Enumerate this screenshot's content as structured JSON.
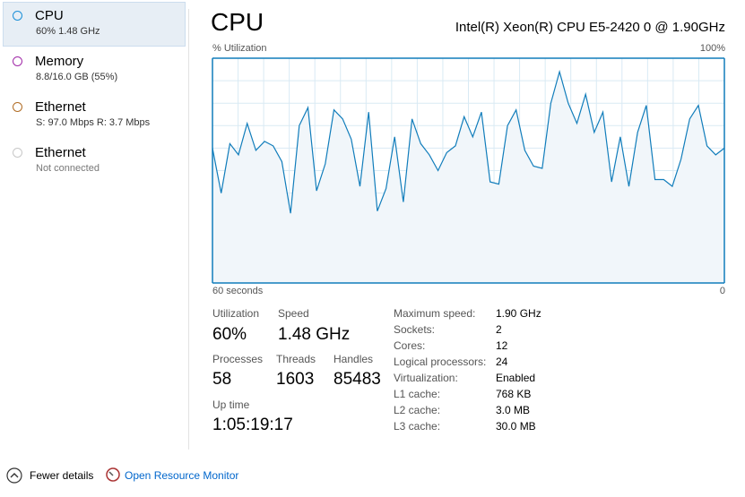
{
  "sidebar": [
    {
      "name": "CPU",
      "detail": "60% 1.48 GHz"
    },
    {
      "name": "Memory",
      "detail": "8.8/16.0 GB (55%)"
    },
    {
      "name": "Ethernet",
      "detail": "S: 97.0 Mbps R: 3.7 Mbps"
    },
    {
      "name": "Ethernet",
      "detail": "Not connected"
    }
  ],
  "header": {
    "title": "CPU",
    "processor": "Intel(R) Xeon(R) CPU E5-2420 0 @ 1.90GHz"
  },
  "graph": {
    "type": "line",
    "y_label": "% Utilization",
    "color": "#117dbb",
    "ylim": [
      0,
      100
    ],
    "yticks": [
      {
        "value": 100,
        "label": "100%"
      }
    ],
    "xlim": [
      60,
      0
    ],
    "xticks": [
      {
        "value": 60,
        "label": "60 seconds"
      },
      0
    ],
    "values": [
      60,
      40,
      62,
      57,
      71,
      59,
      63,
      61,
      54,
      31,
      70,
      78,
      41,
      53,
      77,
      73,
      64,
      43,
      76,
      32,
      42,
      65,
      36,
      73,
      62,
      57,
      50,
      58,
      61,
      74,
      65,
      76,
      45,
      44,
      70,
      77,
      59,
      52,
      51,
      80,
      94,
      80,
      71,
      84,
      67,
      76,
      45,
      65,
      43,
      67,
      79,
      46,
      46,
      43,
      55,
      73,
      79,
      61,
      57,
      60
    ]
  },
  "stats": [
    {
      "label": "Utilization",
      "value": "60%"
    },
    {
      "label": "Speed",
      "value": "1.48 GHz"
    },
    {
      "label": "Processes",
      "value": "58"
    },
    {
      "label": "Threads",
      "value": "1603"
    },
    {
      "label": "Handles",
      "value": "85483"
    },
    {
      "label": "Up time",
      "value": "1:05:19:17"
    }
  ],
  "specs": [
    {
      "label": "Maximum speed:",
      "value": "1.90 GHz"
    },
    {
      "label": "Sockets:",
      "value": "2"
    },
    {
      "label": "Cores:",
      "value": "12"
    },
    {
      "label": "Logical processors:",
      "value": "24"
    },
    {
      "label": "Virtualization:",
      "value": "Enabled"
    },
    {
      "label": "L1 cache:",
      "value": "768 KB"
    },
    {
      "label": "L2 cache:",
      "value": "3.0 MB"
    },
    {
      "label": "L3 cache:",
      "value": "30.0 MB"
    }
  ],
  "footer": {
    "fewer": "Fewer details",
    "monitor": "Open Resource Monitor"
  }
}
